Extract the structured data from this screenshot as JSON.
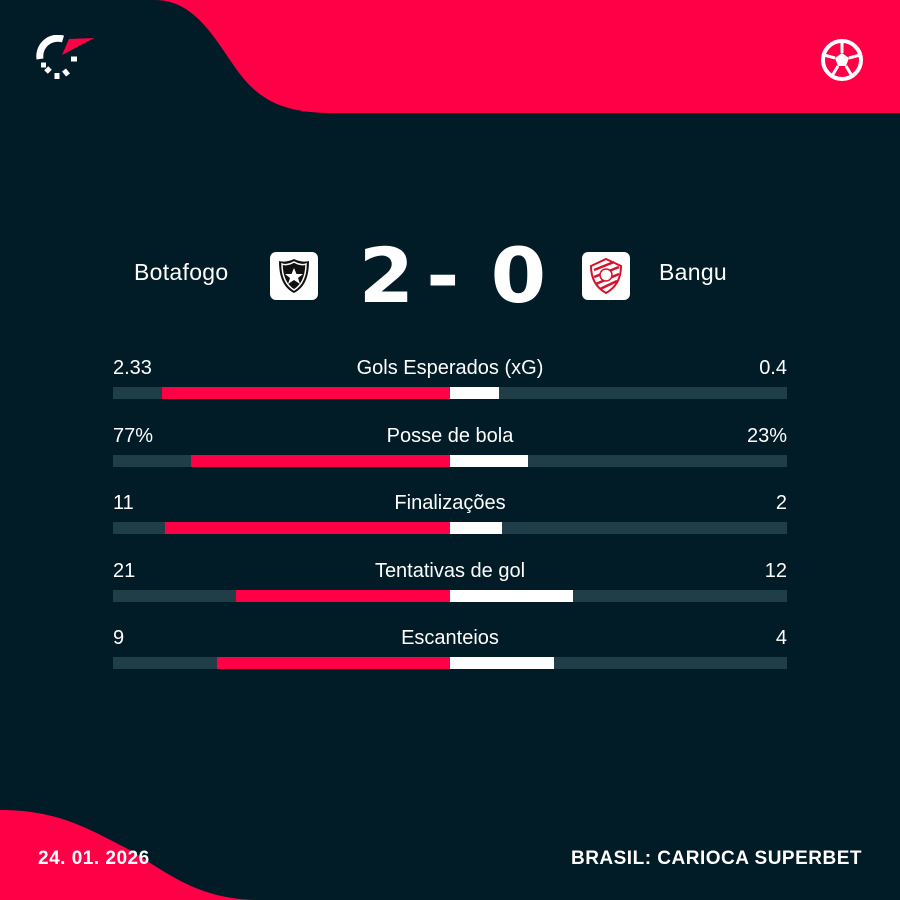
{
  "colors": {
    "background": "#011c27",
    "accent": "#ff0046",
    "track": "#1f3e48",
    "away_bar": "#ffffff"
  },
  "header": {
    "logo_icon": "flashscore-logo-icon",
    "sport_icon": "soccer-ball-icon"
  },
  "match": {
    "home_team": "Botafogo",
    "away_team": "Bangu",
    "home_score": "2",
    "separator": "-",
    "away_score": "0",
    "home_crest": "botafogo-crest-icon",
    "away_crest": "bangu-crest-icon"
  },
  "stats": [
    {
      "label": "Gols Esperados (xG)",
      "home": "2.33",
      "away": "0.4",
      "home_value": 2.33,
      "away_value": 0.4
    },
    {
      "label": "Posse de bola",
      "home": "77%",
      "away": "23%",
      "home_value": 77,
      "away_value": 23
    },
    {
      "label": "Finalizações",
      "home": "11",
      "away": "2",
      "home_value": 11,
      "away_value": 2
    },
    {
      "label": "Tentativas de gol",
      "home": "21",
      "away": "12",
      "home_value": 21,
      "away_value": 12
    },
    {
      "label": "Escanteios",
      "home": "9",
      "away": "4",
      "home_value": 9,
      "away_value": 4
    }
  ],
  "footer": {
    "date": "24. 01. 2026",
    "competition": "BRASIL: CARIOCA SUPERBET"
  }
}
